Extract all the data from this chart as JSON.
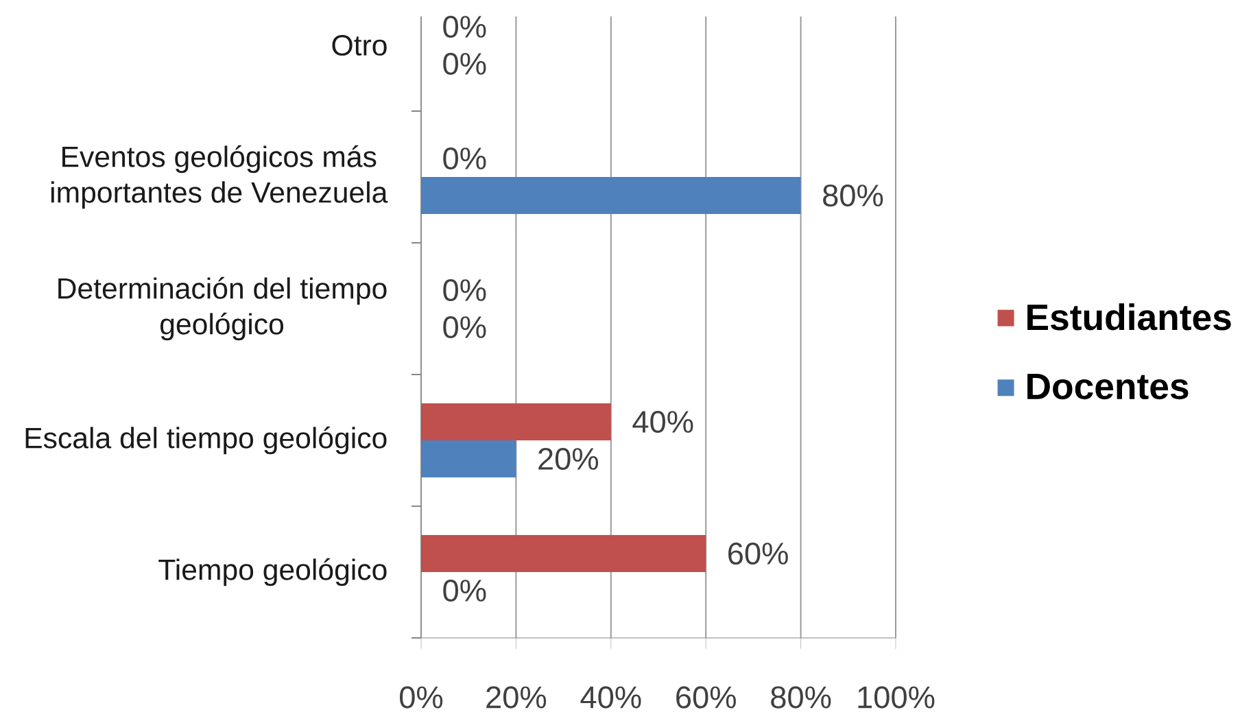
{
  "chart_data": {
    "type": "bar",
    "orientation": "horizontal",
    "categories": [
      "Otro",
      "Eventos geológicos más importantes de Venezuela",
      "Determinación del tiempo geológico",
      "Escala del tiempo geológico",
      "Tiempo geológico"
    ],
    "series": [
      {
        "name": "Estudiantes",
        "color": "#c0504d",
        "values": [
          0,
          0,
          0,
          40,
          60
        ],
        "value_labels": [
          "0%",
          "0%",
          "0%",
          "40%",
          "60%"
        ]
      },
      {
        "name": "Docentes",
        "color": "#4f81bd",
        "values": [
          0,
          80,
          0,
          20,
          0
        ],
        "value_labels": [
          "0%",
          "80%",
          "0%",
          "20%",
          "0%"
        ]
      }
    ],
    "xlim": [
      0,
      100
    ],
    "xticks": [
      {
        "value": 0,
        "label": "0%"
      },
      {
        "value": 20,
        "label": "20%"
      },
      {
        "value": 40,
        "label": "40%"
      },
      {
        "value": 60,
        "label": "60%"
      },
      {
        "value": 80,
        "label": "80%"
      },
      {
        "value": 100,
        "label": "100%"
      }
    ],
    "grid": "x",
    "legend": "right"
  }
}
